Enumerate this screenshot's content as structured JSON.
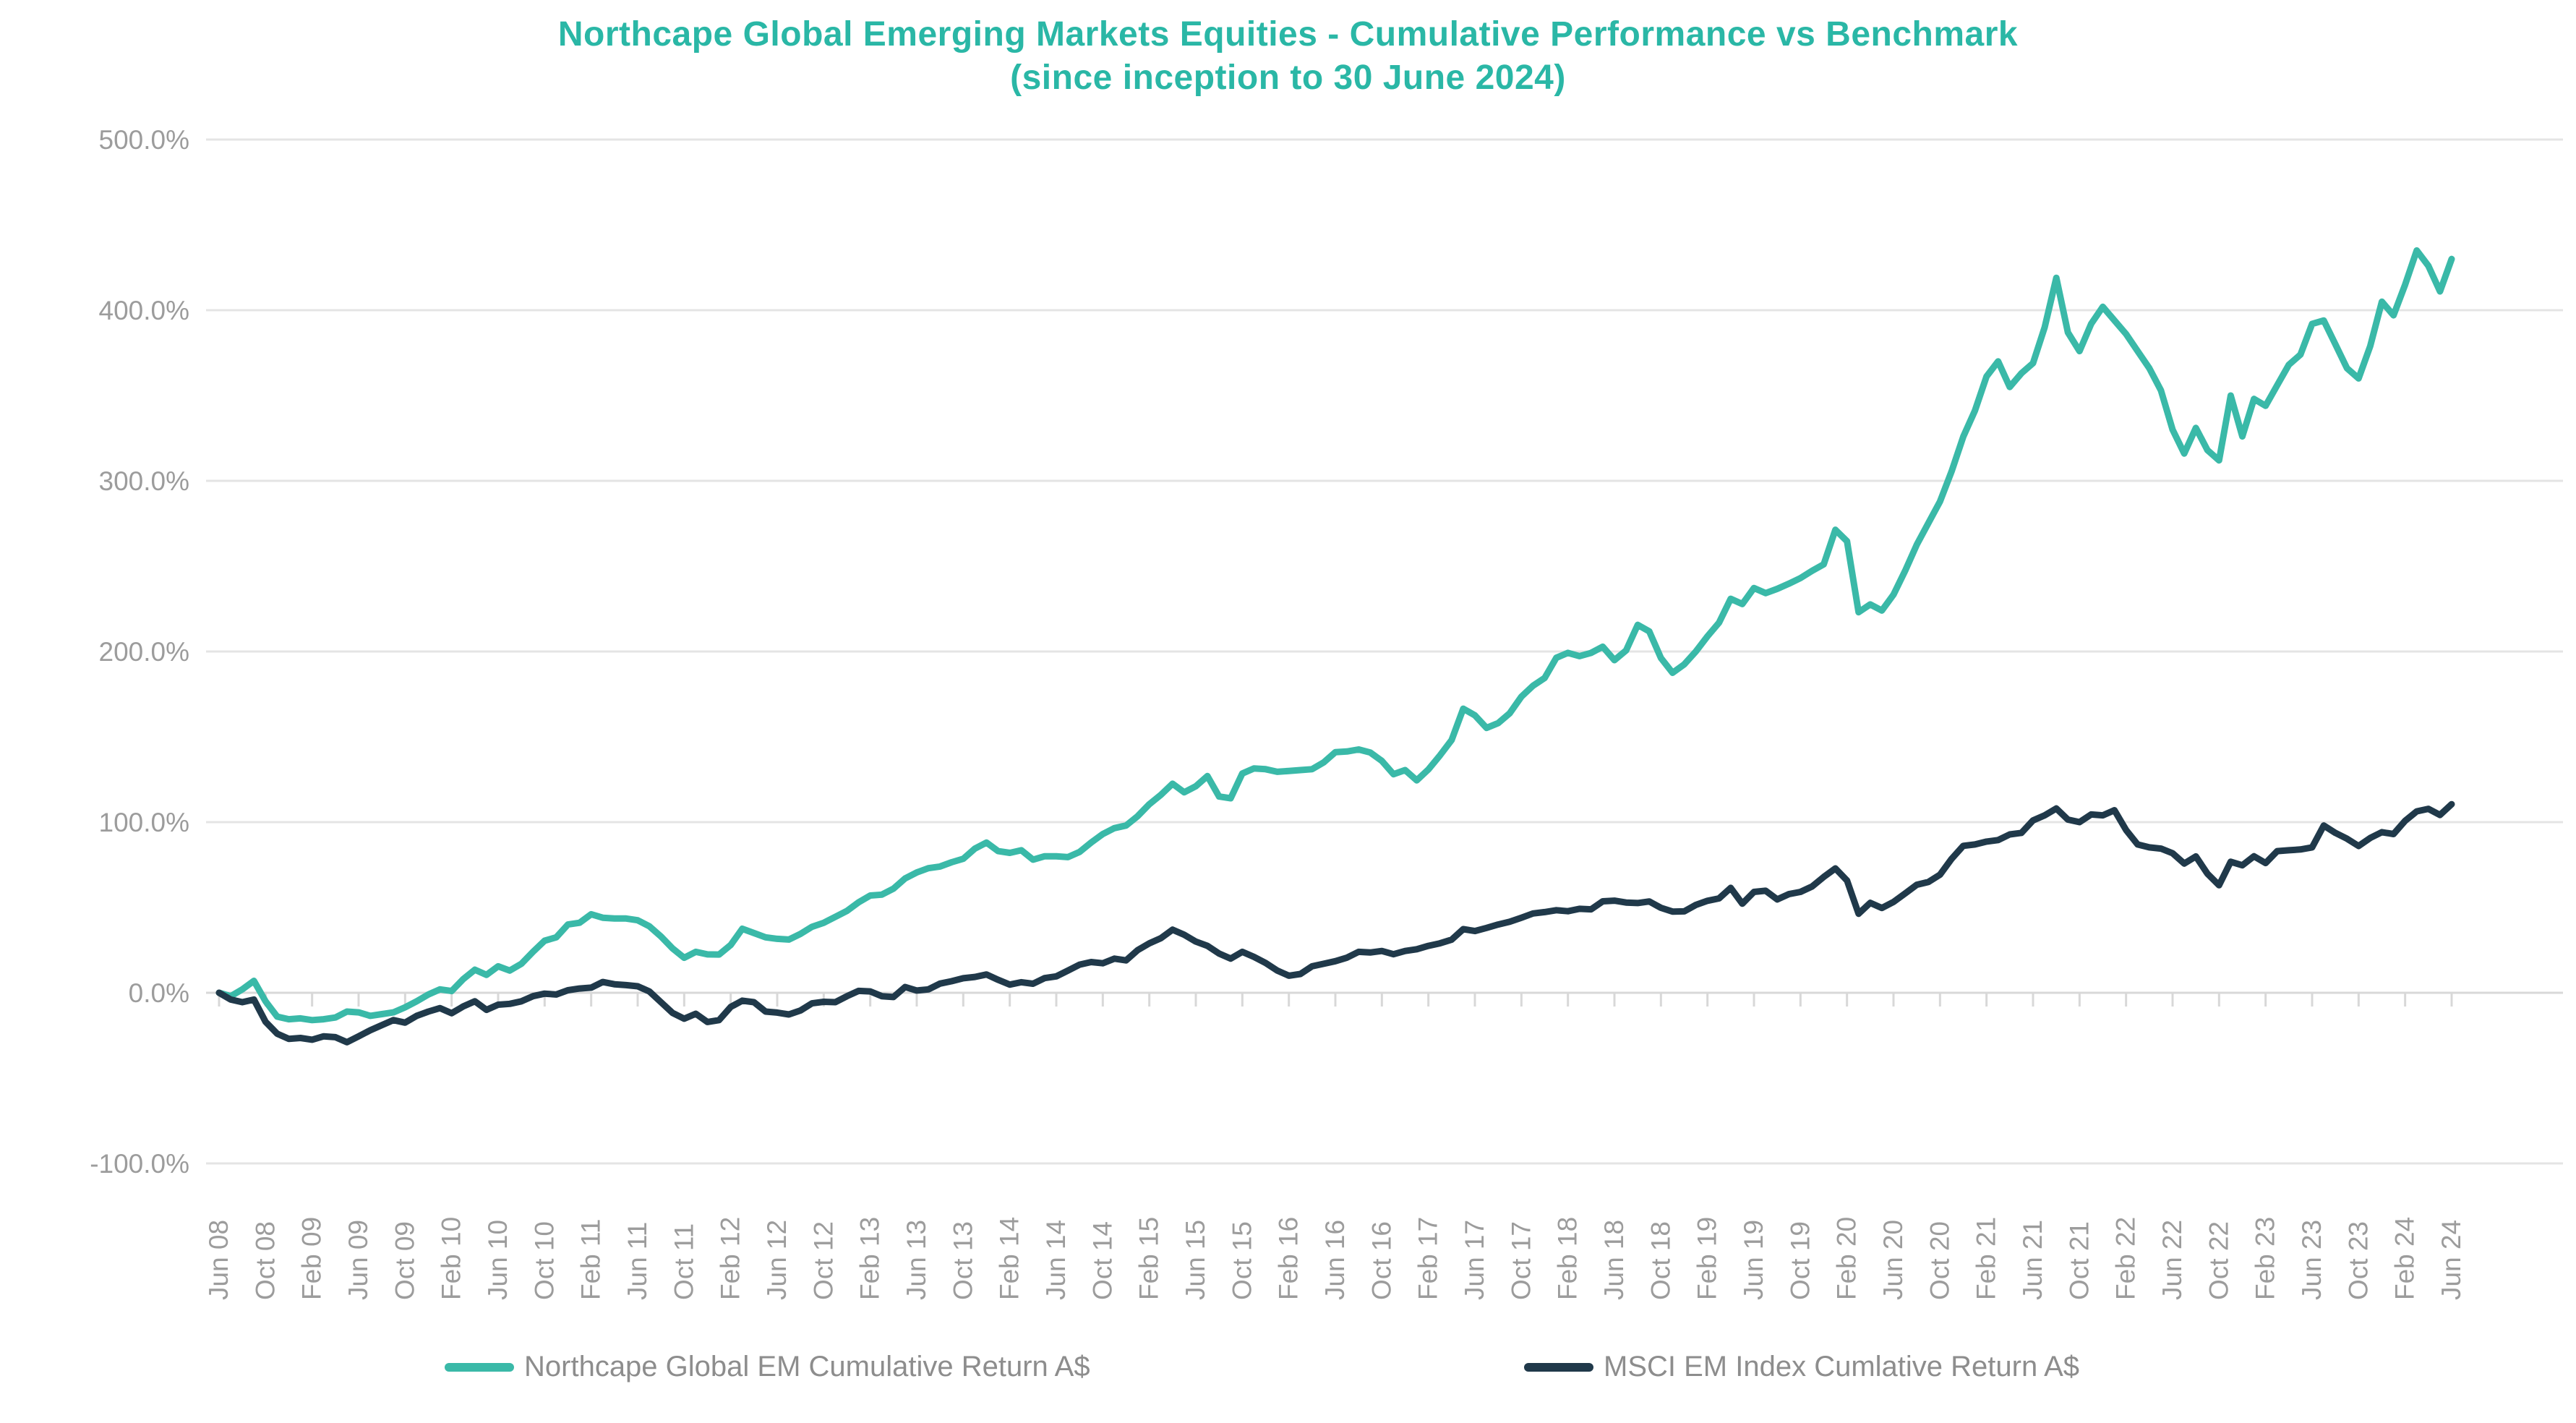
{
  "title": {
    "line1": "Northcape Global Emerging Markets Equities - Cumulative Performance vs Benchmark",
    "line2": "(since inception to 30 June 2024)"
  },
  "colors": {
    "title": "#2ab7a6",
    "series_fund": "#3ab9a8",
    "series_index": "#20394a",
    "gridline": "#e4e4e4",
    "zero_axis": "#d8d8d8",
    "axis_text": "#9c9c9c",
    "legend_text": "#8d8d8d"
  },
  "chart_data": {
    "type": "line",
    "title": "Northcape Global Emerging Markets Equities - Cumulative Performance vs Benchmark (since inception to 30 June 2024)",
    "x_frequency": "monthly",
    "x_start": "Jun 2008",
    "x_end": "Jun 2024",
    "xlabel": "",
    "ylabel": "",
    "y_unit": "%",
    "ylim": [
      -100,
      500
    ],
    "grid": "horizontal",
    "legend_position": "bottom",
    "y_ticks": [
      "500.0%",
      "400.0%",
      "300.0%",
      "200.0%",
      "100.0%",
      "0.0%",
      "-100.0%"
    ],
    "x_tick_labels": [
      "Jun 08",
      "Oct 08",
      "Feb 09",
      "Jun 09",
      "Oct 09",
      "Feb 10",
      "Jun 10",
      "Oct 10",
      "Feb 11",
      "Jun 11",
      "Oct 11",
      "Feb 12",
      "Jun 12",
      "Oct 12",
      "Feb 13",
      "Jun 13",
      "Oct 13",
      "Feb 14",
      "Jun 14",
      "Oct 14",
      "Feb 15",
      "Jun 15",
      "Oct 15",
      "Feb 16",
      "Jun 16",
      "Oct 16",
      "Feb 17",
      "Jun 17",
      "Oct 17",
      "Feb 18",
      "Jun 18",
      "Oct 18",
      "Feb 19",
      "Jun 19",
      "Oct 19",
      "Feb 20",
      "Jun 20",
      "Oct 20",
      "Feb 21",
      "Jun 21",
      "Oct 21",
      "Feb 22",
      "Jun 22",
      "Oct 22",
      "Feb 23",
      "Jun 23",
      "Oct 23",
      "Feb 24",
      "Jun 24"
    ],
    "x_tick_every_n_months": 4,
    "series": [
      {
        "name": "Northcape Global EM Cumulative Return A$",
        "color": "#3ab9a8",
        "values": [
          0,
          -2,
          2,
          7,
          -5,
          -14,
          -15.5,
          -15,
          -16,
          -15.5,
          -14.5,
          -11,
          -11.5,
          -13.5,
          -12.5,
          -11.5,
          -8.5,
          -5,
          -1,
          2,
          1,
          8,
          13.5,
          10.5,
          15.5,
          13,
          17,
          24,
          30.5,
          32.5,
          40,
          41,
          46,
          44,
          43.5,
          43.5,
          42.5,
          39,
          33,
          26,
          20.5,
          24,
          22.5,
          22.4,
          28,
          37.5,
          35,
          32.5,
          31.6,
          31.2,
          34.5,
          38.7,
          41,
          44.5,
          48,
          53,
          57,
          57.5,
          61,
          67,
          70.5,
          73,
          74,
          76.5,
          78.5,
          84.5,
          88,
          83,
          82,
          83.5,
          78,
          80,
          80,
          79.5,
          82.5,
          88,
          93,
          96.5,
          98,
          103.5,
          110.5,
          116,
          122.5,
          117.5,
          121,
          127,
          115,
          114,
          128.5,
          131.5,
          131,
          129.5,
          130,
          130.5,
          131,
          135,
          141,
          141.4,
          142.6,
          140.8,
          135.9,
          128.1,
          130.5,
          124.5,
          130.9,
          139.1,
          148.1,
          166.5,
          162.6,
          155.2,
          158,
          163.8,
          173.5,
          179.9,
          184.5,
          196.3,
          199.2,
          197.3,
          199.2,
          202.8,
          194.9,
          200.6,
          215.6,
          211.8,
          196.2,
          187.5,
          192.4,
          200,
          208.9,
          216.9,
          230.9,
          227.8,
          237.2,
          234.2,
          236.7,
          239.7,
          243,
          247.3,
          251.1,
          271.3,
          264.6,
          223,
          227.6,
          224,
          233.3,
          247.3,
          262.6,
          275.2,
          287.9,
          305.6,
          325.9,
          341.1,
          361.2,
          370,
          355,
          363,
          369,
          390,
          419,
          387,
          376,
          392,
          402,
          394,
          386,
          376,
          366,
          353,
          330,
          316,
          331,
          318,
          312,
          350,
          326,
          348,
          344,
          356,
          368,
          374,
          392,
          394,
          380,
          366,
          360,
          379,
          405,
          397,
          415,
          435,
          426,
          411,
          430
        ]
      },
      {
        "name": "MSCI EM Index Cumlative Return A$",
        "color": "#20394a",
        "values": [
          0,
          -4,
          -5.5,
          -4,
          -17,
          -24,
          -27,
          -26.5,
          -27.5,
          -25.5,
          -26,
          -29,
          -25.5,
          -22,
          -19,
          -16,
          -17.5,
          -13.5,
          -11,
          -9,
          -12,
          -8,
          -5,
          -10,
          -7,
          -6.5,
          -5,
          -2,
          -0.5,
          -1,
          1.5,
          2.5,
          3,
          6.3,
          5,
          4.5,
          3.8,
          0.8,
          -5.5,
          -11.8,
          -15.2,
          -12.3,
          -17.1,
          -16,
          -8.3,
          -4.6,
          -5.5,
          -11,
          -11.6,
          -12.7,
          -10.4,
          -6.2,
          -5.3,
          -5.5,
          -2,
          1.1,
          0.8,
          -2,
          -2.5,
          3.4,
          1.3,
          2,
          5.4,
          6.8,
          8.5,
          9.3,
          10.7,
          7.6,
          4.8,
          6.2,
          5.3,
          8.6,
          9.6,
          13,
          16.5,
          18,
          17.3,
          20,
          19,
          25,
          29,
          32,
          37,
          34,
          30,
          27.5,
          23,
          20,
          24,
          21,
          17.5,
          13,
          10,
          11,
          15.5,
          17,
          18.5,
          20.6,
          24,
          23.6,
          24.5,
          22.6,
          24.5,
          25.5,
          27.5,
          29,
          31.1,
          37.3,
          36.2,
          38,
          40,
          41.6,
          44,
          46.5,
          47.3,
          48.4,
          47.8,
          49.2,
          48.9,
          53.6,
          54,
          52.9,
          52.6,
          53.5,
          49.8,
          47.6,
          47.7,
          51.5,
          53.9,
          55.3,
          61.5,
          52.2,
          59.1,
          59.8,
          54.7,
          57.8,
          59.1,
          62.3,
          67.9,
          72.9,
          65.8,
          46.3,
          52.7,
          49.7,
          53.2,
          58.2,
          63.3,
          64.9,
          69.2,
          78.5,
          86.1,
          86.9,
          88.6,
          89.5,
          92.8,
          93.7,
          101,
          104,
          108,
          101.5,
          100,
          104.5,
          104,
          107,
          95.4,
          86.9,
          85.2,
          84.5,
          81.8,
          75.7,
          79.9,
          69.8,
          63,
          76.8,
          74.7,
          80,
          76,
          83,
          83.5,
          84,
          85.2,
          98,
          93.7,
          90.3,
          86,
          90.7,
          94.1,
          93,
          100.8,
          106.3,
          107.8,
          104.2,
          110.5
        ]
      }
    ]
  },
  "legend": {
    "items": [
      {
        "label": "Northcape Global EM Cumulative Return A$"
      },
      {
        "label": "MSCI EM Index Cumlative Return A$"
      }
    ]
  }
}
